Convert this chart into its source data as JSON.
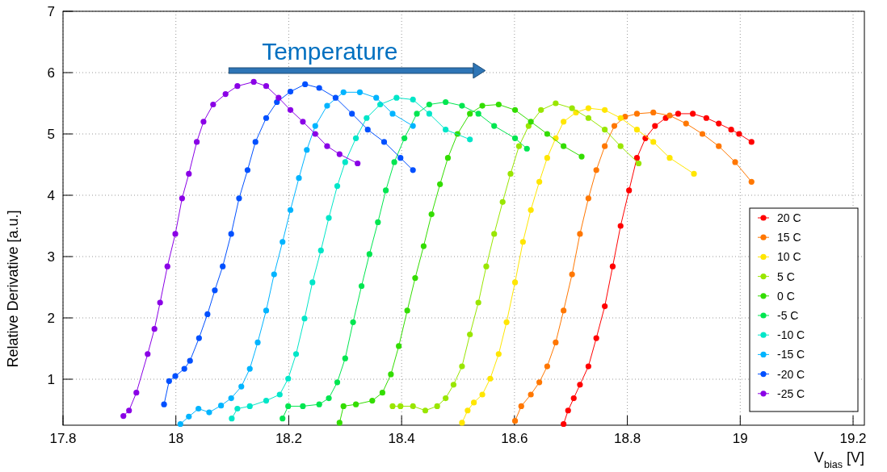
{
  "chart_data": {
    "type": "line",
    "xlabel": "V$_{bias}$ [V]",
    "ylabel": "Relative Derivative [a.u.]",
    "annotations": [
      "Temperature"
    ],
    "xlim": [
      17.8,
      19.22
    ],
    "xticks": [
      17.8,
      18,
      18.2,
      18.4,
      18.6,
      18.8,
      19,
      19.2
    ],
    "ylim": [
      0.25,
      7
    ],
    "yticks": [
      1,
      2,
      3,
      4,
      5,
      6,
      7
    ],
    "grid": true,
    "legend": "bottom right",
    "marker": "circle",
    "line_style": "solid",
    "series": [
      {
        "name": "20 C",
        "color": "#ff0000",
        "x": [
          18.687,
          18.695,
          18.705,
          18.716,
          18.731,
          18.745,
          18.76,
          18.774,
          18.788,
          18.803,
          18.817,
          18.832,
          18.849,
          18.868,
          18.89,
          18.916,
          18.94,
          18.962,
          18.984,
          18.998,
          19.02
        ],
        "values": [
          0.27,
          0.49,
          0.69,
          0.91,
          1.21,
          1.67,
          2.19,
          2.84,
          3.5,
          4.08,
          4.61,
          4.93,
          5.13,
          5.26,
          5.33,
          5.33,
          5.26,
          5.17,
          5.07,
          5.0,
          4.87
        ]
      },
      {
        "name": "15 C",
        "color": "#ff7700",
        "x": [
          18.601,
          18.612,
          18.629,
          18.644,
          18.658,
          18.673,
          18.687,
          18.702,
          18.716,
          18.731,
          18.745,
          18.76,
          18.777,
          18.796,
          18.817,
          18.846,
          18.875,
          18.904,
          18.933,
          18.962,
          18.991,
          19.02
        ],
        "values": [
          0.32,
          0.56,
          0.75,
          0.95,
          1.21,
          1.6,
          2.12,
          2.71,
          3.37,
          3.95,
          4.41,
          4.8,
          5.13,
          5.28,
          5.33,
          5.35,
          5.3,
          5.17,
          5.0,
          4.8,
          4.54,
          4.22
        ]
      },
      {
        "name": "10 C",
        "color": "#ffe600",
        "x": [
          18.507,
          18.517,
          18.528,
          18.543,
          18.557,
          18.572,
          18.586,
          18.601,
          18.615,
          18.629,
          18.644,
          18.658,
          18.673,
          18.687,
          18.709,
          18.731,
          18.76,
          18.788,
          18.817,
          18.846,
          18.875,
          18.918
        ],
        "values": [
          0.29,
          0.49,
          0.62,
          0.75,
          1.01,
          1.41,
          1.93,
          2.58,
          3.24,
          3.76,
          4.22,
          4.61,
          4.93,
          5.2,
          5.35,
          5.42,
          5.39,
          5.26,
          5.07,
          4.87,
          4.61,
          4.35
        ]
      },
      {
        "name": "5 C",
        "color": "#99e600",
        "x": [
          18.384,
          18.398,
          18.42,
          18.442,
          18.463,
          18.478,
          18.492,
          18.507,
          18.521,
          18.536,
          18.55,
          18.564,
          18.579,
          18.593,
          18.608,
          18.625,
          18.647,
          18.673,
          18.702,
          18.731,
          18.76,
          18.788,
          18.82
        ],
        "values": [
          0.56,
          0.56,
          0.56,
          0.49,
          0.56,
          0.69,
          0.91,
          1.21,
          1.73,
          2.25,
          2.84,
          3.37,
          3.89,
          4.35,
          4.8,
          5.13,
          5.39,
          5.5,
          5.42,
          5.26,
          5.07,
          4.8,
          4.52
        ]
      },
      {
        "name": "0 C",
        "color": "#33dd00",
        "x": [
          18.29,
          18.297,
          18.319,
          18.348,
          18.366,
          18.381,
          18.395,
          18.41,
          18.424,
          18.439,
          18.453,
          18.468,
          18.482,
          18.499,
          18.521,
          18.543,
          18.572,
          18.601,
          18.629,
          18.658,
          18.687,
          18.719
        ],
        "values": [
          0.29,
          0.56,
          0.59,
          0.65,
          0.78,
          1.08,
          1.54,
          2.12,
          2.65,
          3.17,
          3.69,
          4.18,
          4.61,
          5.0,
          5.33,
          5.46,
          5.48,
          5.39,
          5.2,
          5.0,
          4.8,
          4.63
        ]
      },
      {
        "name": "-5 C",
        "color": "#00e650",
        "x": [
          18.189,
          18.199,
          18.225,
          18.254,
          18.271,
          18.286,
          18.3,
          18.314,
          18.329,
          18.343,
          18.358,
          18.372,
          18.387,
          18.405,
          18.427,
          18.449,
          18.478,
          18.507,
          18.536,
          18.564,
          18.601,
          18.622
        ],
        "values": [
          0.36,
          0.56,
          0.56,
          0.59,
          0.69,
          0.95,
          1.34,
          1.93,
          2.52,
          3.04,
          3.56,
          4.08,
          4.54,
          4.93,
          5.33,
          5.48,
          5.52,
          5.46,
          5.33,
          5.13,
          4.93,
          4.76
        ]
      },
      {
        "name": "-10 C",
        "color": "#00e6c8",
        "x": [
          18.099,
          18.109,
          18.131,
          18.16,
          18.184,
          18.199,
          18.213,
          18.228,
          18.242,
          18.257,
          18.271,
          18.286,
          18.3,
          18.319,
          18.338,
          18.362,
          18.391,
          18.42,
          18.449,
          18.478,
          18.521
        ],
        "values": [
          0.36,
          0.52,
          0.56,
          0.65,
          0.75,
          1.01,
          1.41,
          1.99,
          2.58,
          3.1,
          3.63,
          4.15,
          4.54,
          4.93,
          5.26,
          5.48,
          5.59,
          5.56,
          5.33,
          5.07,
          4.91
        ]
      },
      {
        "name": "-15 C",
        "color": "#00b4ff",
        "x": [
          18.008,
          18.023,
          18.04,
          18.059,
          18.08,
          18.098,
          18.116,
          18.131,
          18.145,
          18.16,
          18.174,
          18.189,
          18.203,
          18.218,
          18.232,
          18.247,
          18.268,
          18.297,
          18.326,
          18.355,
          18.384,
          18.42
        ],
        "values": [
          0.27,
          0.39,
          0.52,
          0.46,
          0.57,
          0.69,
          0.88,
          1.17,
          1.6,
          2.12,
          2.71,
          3.24,
          3.76,
          4.28,
          4.74,
          5.13,
          5.46,
          5.68,
          5.68,
          5.59,
          5.33,
          5.13
        ]
      },
      {
        "name": "-20 C",
        "color": "#0050ff",
        "x": [
          17.979,
          17.988,
          17.999,
          18.015,
          18.025,
          18.041,
          18.056,
          18.069,
          18.083,
          18.098,
          18.112,
          18.127,
          18.141,
          18.16,
          18.179,
          18.203,
          18.229,
          18.254,
          18.283,
          18.312,
          18.34,
          18.369,
          18.398,
          18.42
        ],
        "values": [
          0.59,
          0.97,
          1.05,
          1.17,
          1.3,
          1.67,
          2.06,
          2.45,
          2.84,
          3.37,
          3.95,
          4.41,
          4.87,
          5.26,
          5.52,
          5.69,
          5.81,
          5.75,
          5.59,
          5.33,
          5.07,
          4.87,
          4.61,
          4.41
        ]
      },
      {
        "name": "-25 C",
        "color": "#8a00e6",
        "x": [
          17.907,
          17.917,
          17.93,
          17.95,
          17.962,
          17.972,
          17.985,
          17.999,
          18.011,
          18.023,
          18.037,
          18.049,
          18.066,
          18.088,
          18.109,
          18.138,
          18.16,
          18.182,
          18.203,
          18.225,
          18.247,
          18.268,
          18.29,
          18.322
        ],
        "values": [
          0.4,
          0.49,
          0.78,
          1.41,
          1.82,
          2.25,
          2.84,
          3.37,
          3.95,
          4.35,
          4.87,
          5.2,
          5.48,
          5.65,
          5.78,
          5.85,
          5.78,
          5.59,
          5.39,
          5.2,
          5.0,
          4.8,
          4.67,
          4.52
        ]
      }
    ]
  }
}
